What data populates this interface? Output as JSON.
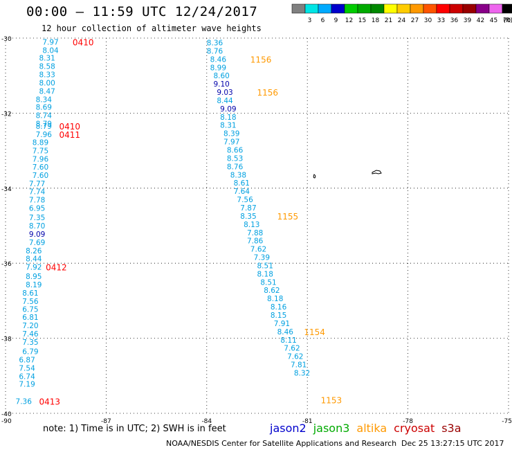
{
  "header": {
    "title": "00:00 – 11:59 UTC 12/24/2017",
    "subtitle": "12 hour collection of altimeter wave heights"
  },
  "legend": {
    "unit": "(ft)",
    "bins": [
      {
        "label": "",
        "color": "#808080"
      },
      {
        "label": "3",
        "color": "#00e5e5"
      },
      {
        "label": "6",
        "color": "#00aaff"
      },
      {
        "label": "9",
        "color": "#0000cc"
      },
      {
        "label": "12",
        "color": "#00cc00"
      },
      {
        "label": "15",
        "color": "#00aa00"
      },
      {
        "label": "18",
        "color": "#008800"
      },
      {
        "label": "21",
        "color": "#ffff00"
      },
      {
        "label": "24",
        "color": "#ffcc00"
      },
      {
        "label": "27",
        "color": "#ff9900"
      },
      {
        "label": "30",
        "color": "#ff5500"
      },
      {
        "label": "33",
        "color": "#ff0000"
      },
      {
        "label": "36",
        "color": "#cc0000"
      },
      {
        "label": "39",
        "color": "#990000"
      },
      {
        "label": "42",
        "color": "#880088"
      },
      {
        "label": "45",
        "color": "#ee66ee"
      },
      {
        "label": "70",
        "color": "#000000"
      }
    ]
  },
  "axes": {
    "x_ticks": [
      "-90",
      "-87",
      "-84",
      "-81",
      "-78",
      "-75"
    ],
    "y_ticks": [
      "-30",
      "-32",
      "-34",
      "-36",
      "-38",
      "-40"
    ],
    "x_range": [
      -90,
      -75
    ],
    "y_range": [
      -30,
      -40
    ],
    "grid": "dotted"
  },
  "colors": {
    "light_blue": "#00a0e0",
    "dark_blue": "#0000aa",
    "red": "#ff0000",
    "orange": "#ff9900"
  },
  "tracks": [
    {
      "name": "west_track",
      "points": [
        {
          "lon": -88.9,
          "lat": -30.1,
          "v": "7.97"
        },
        {
          "lon": -88.9,
          "lat": -30.32,
          "v": "8.04"
        },
        {
          "lon": -89.0,
          "lat": -30.53,
          "v": "8.31"
        },
        {
          "lon": -89.0,
          "lat": -30.75,
          "v": "8.58"
        },
        {
          "lon": -89.0,
          "lat": -30.97,
          "v": "8.33"
        },
        {
          "lon": -89.0,
          "lat": -31.19,
          "v": "8.00"
        },
        {
          "lon": -89.0,
          "lat": -31.41,
          "v": "8.47"
        },
        {
          "lon": -89.1,
          "lat": -31.63,
          "v": "8.34"
        },
        {
          "lon": -89.1,
          "lat": -31.84,
          "v": "8.69"
        },
        {
          "lon": -89.1,
          "lat": -32.06,
          "v": "8.74"
        },
        {
          "lon": -89.1,
          "lat": -32.28,
          "v": "8.79"
        },
        {
          "lon": -89.1,
          "lat": -32.34,
          "v": "8.79"
        },
        {
          "lon": -89.1,
          "lat": -32.56,
          "v": "7.96"
        },
        {
          "lon": -89.2,
          "lat": -32.78,
          "v": "8.89"
        },
        {
          "lon": -89.2,
          "lat": -33.0,
          "v": "7.75"
        },
        {
          "lon": -89.2,
          "lat": -33.22,
          "v": "7.96"
        },
        {
          "lon": -89.2,
          "lat": -33.43,
          "v": "7.60"
        },
        {
          "lon": -89.2,
          "lat": -33.65,
          "v": "7.60"
        },
        {
          "lon": -89.3,
          "lat": -33.87,
          "v": "7.77"
        },
        {
          "lon": -89.3,
          "lat": -34.09,
          "v": "7.74"
        },
        {
          "lon": -89.3,
          "lat": -34.31,
          "v": "7.78"
        },
        {
          "lon": -89.3,
          "lat": -34.53,
          "v": "6.95"
        },
        {
          "lon": -89.3,
          "lat": -34.78,
          "v": "7.35"
        },
        {
          "lon": -89.3,
          "lat": -35.0,
          "v": "8.70"
        },
        {
          "lon": -89.3,
          "lat": -35.22,
          "v": "9.09",
          "c": "dark_blue"
        },
        {
          "lon": -89.3,
          "lat": -35.44,
          "v": "7.69"
        },
        {
          "lon": -89.4,
          "lat": -35.66,
          "v": "8.26"
        },
        {
          "lon": -89.4,
          "lat": -35.88,
          "v": "8.44"
        },
        {
          "lon": -89.4,
          "lat": -36.1,
          "v": "7.92"
        },
        {
          "lon": -89.4,
          "lat": -36.35,
          "v": "8.95"
        },
        {
          "lon": -89.4,
          "lat": -36.57,
          "v": "8.19"
        },
        {
          "lon": -89.5,
          "lat": -36.79,
          "v": "8.61"
        },
        {
          "lon": -89.5,
          "lat": -37.01,
          "v": "7.56"
        },
        {
          "lon": -89.5,
          "lat": -37.22,
          "v": "6.75"
        },
        {
          "lon": -89.5,
          "lat": -37.44,
          "v": "6.81"
        },
        {
          "lon": -89.5,
          "lat": -37.66,
          "v": "7.20"
        },
        {
          "lon": -89.5,
          "lat": -37.88,
          "v": "7.46"
        },
        {
          "lon": -89.5,
          "lat": -38.1,
          "v": "7.35"
        },
        {
          "lon": -89.5,
          "lat": -38.35,
          "v": "6.79"
        },
        {
          "lon": -89.6,
          "lat": -38.57,
          "v": "6.87"
        },
        {
          "lon": -89.6,
          "lat": -38.79,
          "v": "7.54"
        },
        {
          "lon": -89.6,
          "lat": -39.01,
          "v": "6.74"
        },
        {
          "lon": -89.6,
          "lat": -39.22,
          "v": "7.19"
        },
        {
          "lon": -89.7,
          "lat": -39.68,
          "v": "7.36"
        }
      ]
    },
    {
      "name": "east_track",
      "points": [
        {
          "lon": -84.0,
          "lat": -30.12,
          "v": "8.36"
        },
        {
          "lon": -84.0,
          "lat": -30.34,
          "v": "8.76"
        },
        {
          "lon": -83.9,
          "lat": -30.56,
          "v": "8.46"
        },
        {
          "lon": -83.9,
          "lat": -30.78,
          "v": "8.99"
        },
        {
          "lon": -83.8,
          "lat": -31.0,
          "v": "8.60"
        },
        {
          "lon": -83.8,
          "lat": -31.22,
          "v": "9.10",
          "c": "dark_blue"
        },
        {
          "lon": -83.7,
          "lat": -31.44,
          "v": "9.03",
          "c": "dark_blue"
        },
        {
          "lon": -83.7,
          "lat": -31.66,
          "v": "8.44"
        },
        {
          "lon": -83.6,
          "lat": -31.88,
          "v": "9.09",
          "c": "dark_blue"
        },
        {
          "lon": -83.6,
          "lat": -32.1,
          "v": "8.18"
        },
        {
          "lon": -83.6,
          "lat": -32.32,
          "v": "8.31"
        },
        {
          "lon": -83.5,
          "lat": -32.54,
          "v": "8.39"
        },
        {
          "lon": -83.5,
          "lat": -32.76,
          "v": "7.97"
        },
        {
          "lon": -83.4,
          "lat": -32.98,
          "v": "8.66"
        },
        {
          "lon": -83.4,
          "lat": -33.2,
          "v": "8.53"
        },
        {
          "lon": -83.4,
          "lat": -33.42,
          "v": "8.76"
        },
        {
          "lon": -83.3,
          "lat": -33.64,
          "v": "8.38"
        },
        {
          "lon": -83.2,
          "lat": -33.86,
          "v": "8.61"
        },
        {
          "lon": -83.2,
          "lat": -34.08,
          "v": "7.64"
        },
        {
          "lon": -83.1,
          "lat": -34.3,
          "v": "7.56"
        },
        {
          "lon": -83.0,
          "lat": -34.52,
          "v": "7.87"
        },
        {
          "lon": -83.0,
          "lat": -34.74,
          "v": "8.35"
        },
        {
          "lon": -82.9,
          "lat": -34.96,
          "v": "8.13"
        },
        {
          "lon": -82.8,
          "lat": -35.18,
          "v": "7.88"
        },
        {
          "lon": -82.8,
          "lat": -35.4,
          "v": "7.86"
        },
        {
          "lon": -82.7,
          "lat": -35.62,
          "v": "7.62"
        },
        {
          "lon": -82.6,
          "lat": -35.84,
          "v": "7.39"
        },
        {
          "lon": -82.5,
          "lat": -36.06,
          "v": "8.51"
        },
        {
          "lon": -82.5,
          "lat": -36.28,
          "v": "8.18"
        },
        {
          "lon": -82.4,
          "lat": -36.5,
          "v": "8.51"
        },
        {
          "lon": -82.3,
          "lat": -36.72,
          "v": "8.62"
        },
        {
          "lon": -82.2,
          "lat": -36.94,
          "v": "8.18"
        },
        {
          "lon": -82.1,
          "lat": -37.16,
          "v": "8.16"
        },
        {
          "lon": -82.1,
          "lat": -37.38,
          "v": "8.15"
        },
        {
          "lon": -82.0,
          "lat": -37.6,
          "v": "7.91"
        },
        {
          "lon": -81.9,
          "lat": -37.82,
          "v": "8.46"
        },
        {
          "lon": -81.8,
          "lat": -38.04,
          "v": "8.11"
        },
        {
          "lon": -81.7,
          "lat": -38.26,
          "v": "7.62"
        },
        {
          "lon": -81.6,
          "lat": -38.48,
          "v": "7.62"
        },
        {
          "lon": -81.5,
          "lat": -38.7,
          "v": "7.81"
        },
        {
          "lon": -81.4,
          "lat": -38.92,
          "v": "8.32"
        }
      ]
    }
  ],
  "time_labels": [
    {
      "lon": -88.0,
      "lat": -30.1,
      "t": "0410",
      "c": "red"
    },
    {
      "lon": -88.4,
      "lat": -32.34,
      "t": "0410",
      "c": "red"
    },
    {
      "lon": -88.4,
      "lat": -32.56,
      "t": "0411",
      "c": "red"
    },
    {
      "lon": -88.8,
      "lat": -36.1,
      "t": "0412",
      "c": "red"
    },
    {
      "lon": -89.0,
      "lat": -39.68,
      "t": "0413",
      "c": "red"
    },
    {
      "lon": -82.7,
      "lat": -30.56,
      "t": "1156",
      "c": "orange"
    },
    {
      "lon": -82.5,
      "lat": -31.44,
      "t": "1156",
      "c": "orange"
    },
    {
      "lon": -81.9,
      "lat": -34.74,
      "t": "1155",
      "c": "orange"
    },
    {
      "lon": -81.1,
      "lat": -37.82,
      "t": "1154",
      "c": "orange"
    },
    {
      "lon": -80.6,
      "lat": -39.64,
      "t": "1153",
      "c": "orange"
    }
  ],
  "footer": {
    "note": "note:  1) Time is in UTC;  2) SWH is in feet",
    "satellites": [
      {
        "name": "jason2",
        "color": "#0000cc"
      },
      {
        "name": "jason3",
        "color": "#00aa00"
      },
      {
        "name": "altika",
        "color": "#ff9900"
      },
      {
        "name": "cryosat",
        "color": "#cc0000"
      },
      {
        "name": "s3a",
        "color": "#990000"
      }
    ],
    "credit": "NOAA/NESDIS Center for Satellite Applications and Research",
    "stamp": "Dec 25 13:27:15 UTC 2017"
  }
}
